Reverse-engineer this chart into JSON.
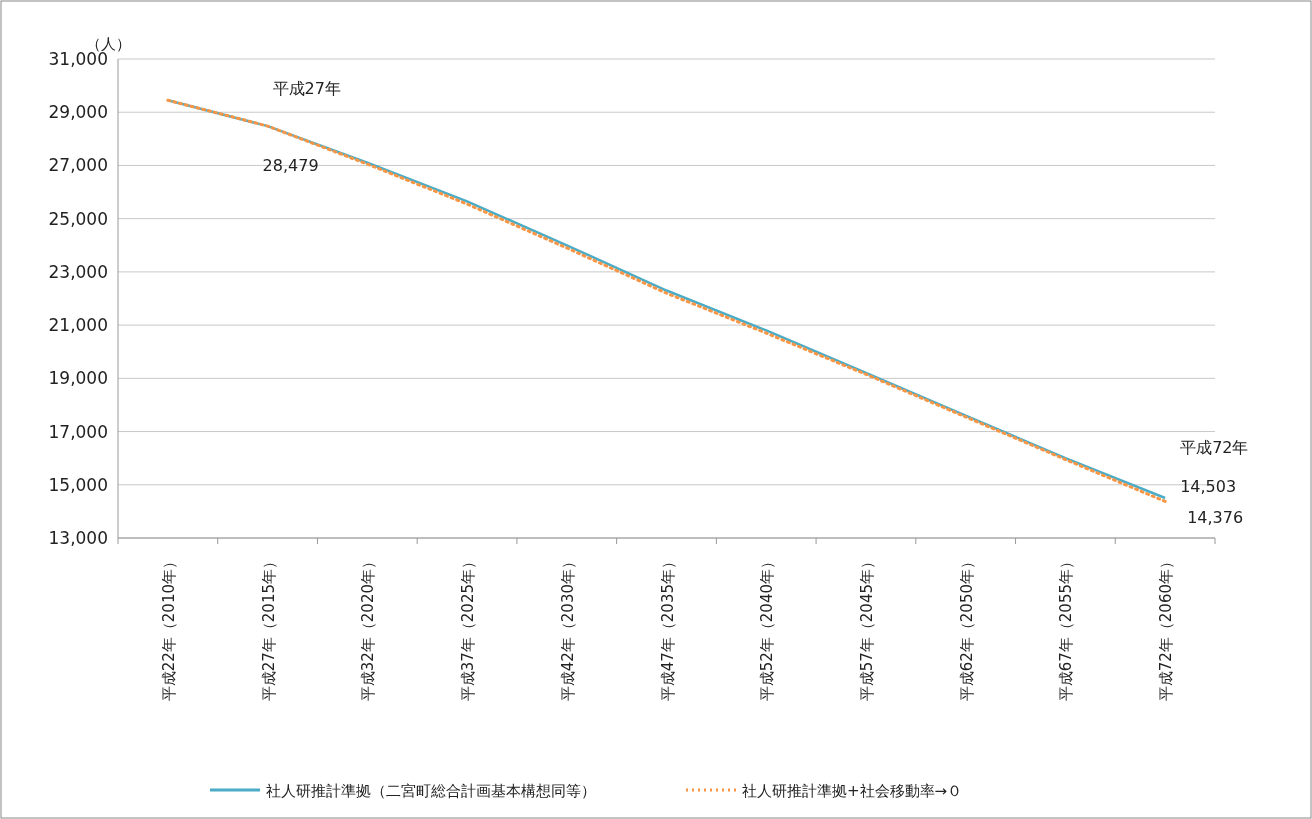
{
  "chart_data": {
    "type": "line",
    "ylabel": "（人）",
    "categories": [
      "平成22年（2010年）",
      "平成27年（2015年）",
      "平成32年（2020年）",
      "平成37年（2025年）",
      "平成42年（2030年）",
      "平成47年（2035年）",
      "平成52年（2040年）",
      "平成57年（2045年）",
      "平成62年（2050年）",
      "平成67年（2055年）",
      "平成72年（2060年）"
    ],
    "series": [
      {
        "name": "社人研推計準拠（二宮町総合計画基本構想同等）",
        "color": "#4bacc6",
        "line_style": "solid",
        "values": [
          29450,
          28479,
          27100,
          25650,
          24000,
          22300,
          20800,
          19200,
          17600,
          16000,
          14503
        ]
      },
      {
        "name": "社人研推計準拠+社会移動率→０",
        "color": "#f79646",
        "line_style": "dotted",
        "values": [
          29450,
          28479,
          27050,
          25550,
          23900,
          22200,
          20700,
          19150,
          17550,
          15950,
          14376
        ]
      }
    ],
    "ylim": [
      13000,
      31000
    ],
    "yticks": [
      {
        "value": 13000,
        "label": "13,000"
      },
      {
        "value": 15000,
        "label": "15,000"
      },
      {
        "value": 17000,
        "label": "17,000"
      },
      {
        "value": 19000,
        "label": "19,000"
      },
      {
        "value": 21000,
        "label": "21,000"
      },
      {
        "value": 23000,
        "label": "23,000"
      },
      {
        "value": 25000,
        "label": "25,000"
      },
      {
        "value": 27000,
        "label": "27,000"
      },
      {
        "value": 29000,
        "label": "29,000"
      },
      {
        "value": 31000,
        "label": "31,000"
      }
    ],
    "grid": "y",
    "legend": "bottom",
    "marker": "none",
    "annotations": [
      {
        "text": "平成27年",
        "x": "平成27年（2015年）",
        "y": 28479
      },
      {
        "text": "28,479",
        "x": "平成27年（2015年）",
        "y": 28479
      },
      {
        "text": "平成72年",
        "x": "平成72年（2060年）",
        "y": 14503
      },
      {
        "text": "14,503",
        "x": "平成72年（2060年）",
        "y": 14503
      },
      {
        "text": "14,376",
        "x": "平成72年（2060年）",
        "y": 14376
      }
    ]
  }
}
